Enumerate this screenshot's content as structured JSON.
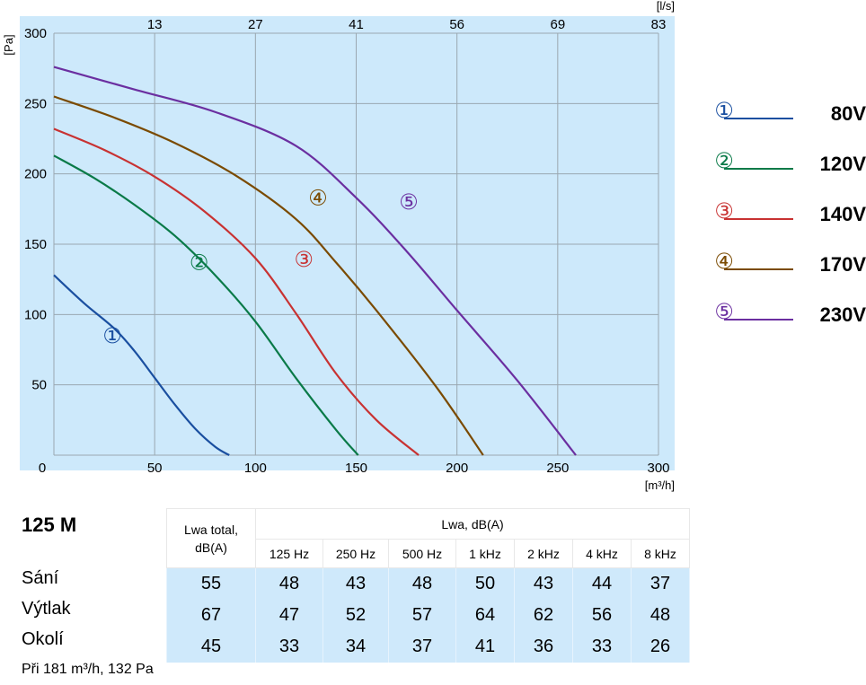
{
  "chart_data": {
    "type": "line",
    "x_axis": {
      "unit": "[m³/h]",
      "range": [
        0,
        300
      ],
      "ticks": [
        "0",
        "50",
        "100",
        "150",
        "200",
        "250",
        "300"
      ]
    },
    "x_axis_top": {
      "unit": "[l/s]",
      "ticks": [
        "13",
        "27",
        "41",
        "56",
        "69",
        "83"
      ]
    },
    "y_axis": {
      "unit": "[Pa]",
      "range": [
        0,
        300
      ],
      "ticks": [
        "50",
        "100",
        "150",
        "200",
        "250",
        "300"
      ]
    },
    "grid": true,
    "legend_position": "right",
    "series": [
      {
        "marker": "①",
        "name": "80V",
        "color": "#1a4fa0",
        "points": [
          [
            0,
            128
          ],
          [
            15,
            108
          ],
          [
            30,
            90
          ],
          [
            40,
            74
          ],
          [
            50,
            55
          ],
          [
            60,
            36
          ],
          [
            70,
            19
          ],
          [
            80,
            6
          ],
          [
            87,
            0
          ]
        ]
      },
      {
        "marker": "②",
        "name": "120V",
        "color": "#0a7a48",
        "points": [
          [
            0,
            213
          ],
          [
            20,
            197
          ],
          [
            40,
            178
          ],
          [
            60,
            156
          ],
          [
            80,
            128
          ],
          [
            100,
            95
          ],
          [
            120,
            55
          ],
          [
            140,
            18
          ],
          [
            151,
            0
          ]
        ]
      },
      {
        "marker": "③",
        "name": "140V",
        "color": "#c83232",
        "points": [
          [
            0,
            232
          ],
          [
            25,
            217
          ],
          [
            50,
            198
          ],
          [
            75,
            173
          ],
          [
            100,
            140
          ],
          [
            120,
            101
          ],
          [
            140,
            58
          ],
          [
            160,
            25
          ],
          [
            181,
            0
          ]
        ]
      },
      {
        "marker": "④",
        "name": "170V",
        "color": "#7a4a00",
        "points": [
          [
            0,
            255
          ],
          [
            30,
            240
          ],
          [
            60,
            222
          ],
          [
            90,
            199
          ],
          [
            120,
            168
          ],
          [
            140,
            137
          ],
          [
            160,
            103
          ],
          [
            190,
            48
          ],
          [
            213,
            0
          ]
        ]
      },
      {
        "marker": "⑤",
        "name": "230V",
        "color": "#6b2fa0",
        "points": [
          [
            0,
            276
          ],
          [
            40,
            260
          ],
          [
            80,
            244
          ],
          [
            120,
            220
          ],
          [
            150,
            183
          ],
          [
            175,
            145
          ],
          [
            200,
            103
          ],
          [
            230,
            53
          ],
          [
            259,
            0
          ]
        ]
      }
    ],
    "curve_labels": [
      {
        "marker": "①",
        "x": 29,
        "y": 85
      },
      {
        "marker": "②",
        "x": 72,
        "y": 137
      },
      {
        "marker": "③",
        "x": 124,
        "y": 139
      },
      {
        "marker": "④",
        "x": 131,
        "y": 183
      },
      {
        "marker": "⑤",
        "x": 176,
        "y": 180
      }
    ]
  },
  "model": "125 M",
  "table": {
    "total_header_line1": "Lwa total,",
    "total_header_line2": "dB(A)",
    "band_header": "Lwa, dB(A)",
    "frequencies": [
      "125 Hz",
      "250 Hz",
      "500 Hz",
      "1 kHz",
      "2 kHz",
      "4 kHz",
      "8 kHz"
    ],
    "rows": [
      {
        "label": "Sání",
        "total": "55",
        "values": [
          "48",
          "43",
          "48",
          "50",
          "43",
          "44",
          "37"
        ]
      },
      {
        "label": "Výtlak",
        "total": "67",
        "values": [
          "47",
          "52",
          "57",
          "64",
          "62",
          "56",
          "48"
        ]
      },
      {
        "label": "Okolí",
        "total": "45",
        "values": [
          "33",
          "34",
          "37",
          "41",
          "36",
          "33",
          "26"
        ]
      }
    ]
  },
  "note": "Při 181 m³/h, 132 Pa"
}
